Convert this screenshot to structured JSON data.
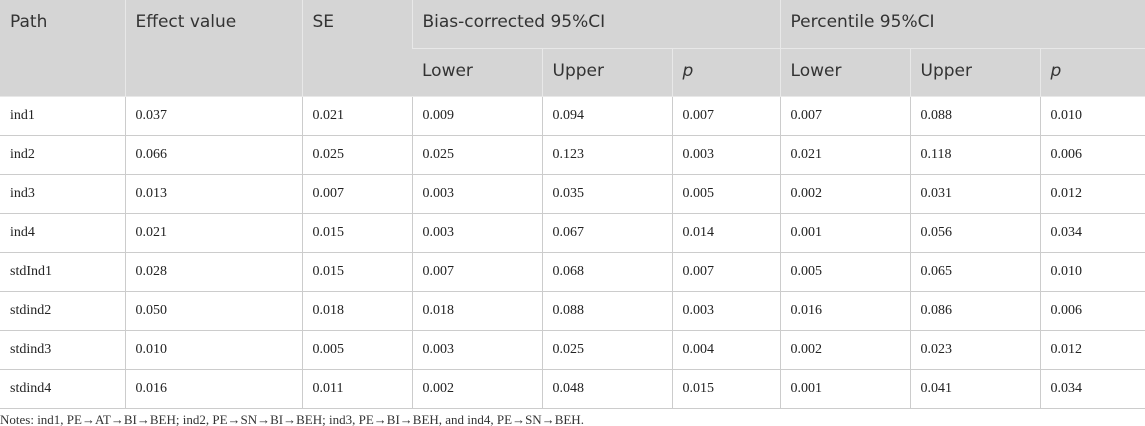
{
  "table": {
    "header": {
      "row1": [
        "Path",
        "Effect value",
        "SE",
        "Bias-corrected 95%CI",
        "Percentile 95%CI"
      ],
      "row2": [
        "Lower",
        "Upper",
        "p",
        "Lower",
        "Upper",
        "p"
      ]
    },
    "rows": [
      [
        "ind1",
        "0.037",
        "0.021",
        "0.009",
        "0.094",
        "0.007",
        "0.007",
        "0.088",
        "0.010"
      ],
      [
        "ind2",
        "0.066",
        "0.025",
        "0.025",
        "0.123",
        "0.003",
        "0.021",
        "0.118",
        "0.006"
      ],
      [
        "ind3",
        "0.013",
        "0.007",
        "0.003",
        "0.035",
        "0.005",
        "0.002",
        "0.031",
        "0.012"
      ],
      [
        "ind4",
        "0.021",
        "0.015",
        "0.003",
        "0.067",
        "0.014",
        "0.001",
        "0.056",
        "0.034"
      ],
      [
        "stdInd1",
        "0.028",
        "0.015",
        "0.007",
        "0.068",
        "0.007",
        "0.005",
        "0.065",
        "0.010"
      ],
      [
        "stdind2",
        "0.050",
        "0.018",
        "0.018",
        "0.088",
        "0.003",
        "0.016",
        "0.086",
        "0.006"
      ],
      [
        "stdind3",
        "0.010",
        "0.005",
        "0.003",
        "0.025",
        "0.004",
        "0.002",
        "0.023",
        "0.012"
      ],
      [
        "stdind4",
        "0.016",
        "0.011",
        "0.002",
        "0.048",
        "0.015",
        "0.001",
        "0.041",
        "0.034"
      ]
    ]
  },
  "notes": "Notes: ind1, PE→AT→BI→BEH; ind2, PE→SN→BI→BEH; ind3, PE→BI→BEH, and ind4, PE→SN→BEH."
}
